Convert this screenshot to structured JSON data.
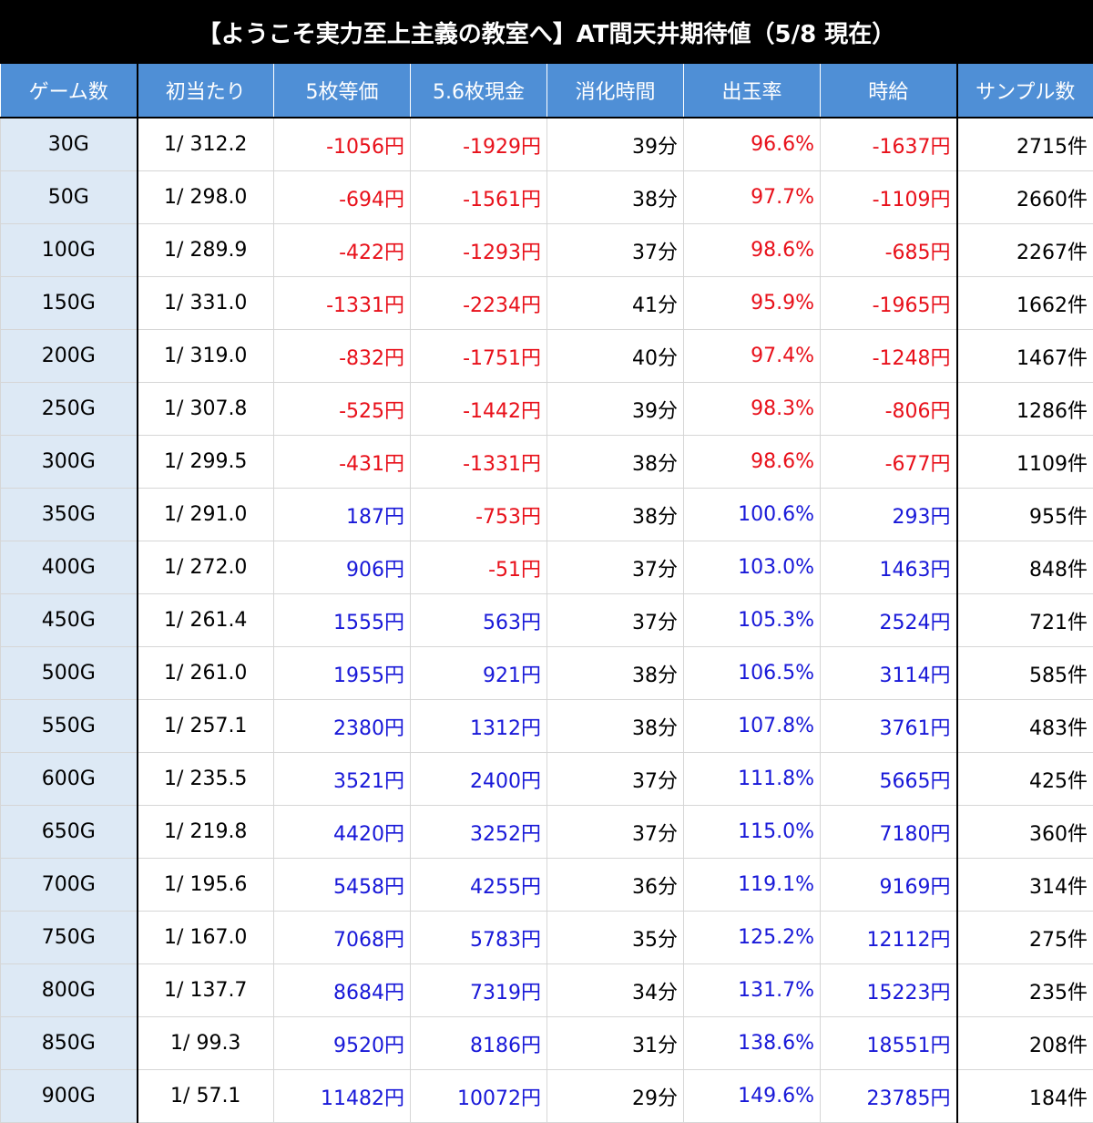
{
  "title": "【ようこそ実力至上主義の教室へ】AT間天井期待値（5/8 現在）",
  "colors": {
    "header_bg": "#4f8fd6",
    "negative": "#e8101a",
    "positive": "#1818d8",
    "first_col_bg": "#dde9f5"
  },
  "headers": [
    "ゲーム数",
    "初当たり",
    "5枚等価",
    "5.6枚現金",
    "消化時間",
    "出玉率",
    "時給",
    "サンプル数"
  ],
  "rows": [
    {
      "game": "30G",
      "hit": "1/ 312.2",
      "eq5": "-1056円",
      "cash56": "-1929円",
      "time": "39分",
      "payout": "96.6%",
      "hourly": "-1637円",
      "samples": "2715件",
      "sign": "neg"
    },
    {
      "game": "50G",
      "hit": "1/ 298.0",
      "eq5": "-694円",
      "cash56": "-1561円",
      "time": "38分",
      "payout": "97.7%",
      "hourly": "-1109円",
      "samples": "2660件",
      "sign": "neg"
    },
    {
      "game": "100G",
      "hit": "1/ 289.9",
      "eq5": "-422円",
      "cash56": "-1293円",
      "time": "37分",
      "payout": "98.6%",
      "hourly": "-685円",
      "samples": "2267件",
      "sign": "neg"
    },
    {
      "game": "150G",
      "hit": "1/ 331.0",
      "eq5": "-1331円",
      "cash56": "-2234円",
      "time": "41分",
      "payout": "95.9%",
      "hourly": "-1965円",
      "samples": "1662件",
      "sign": "neg"
    },
    {
      "game": "200G",
      "hit": "1/ 319.0",
      "eq5": "-832円",
      "cash56": "-1751円",
      "time": "40分",
      "payout": "97.4%",
      "hourly": "-1248円",
      "samples": "1467件",
      "sign": "neg"
    },
    {
      "game": "250G",
      "hit": "1/ 307.8",
      "eq5": "-525円",
      "cash56": "-1442円",
      "time": "39分",
      "payout": "98.3%",
      "hourly": "-806円",
      "samples": "1286件",
      "sign": "neg"
    },
    {
      "game": "300G",
      "hit": "1/ 299.5",
      "eq5": "-431円",
      "cash56": "-1331円",
      "time": "38分",
      "payout": "98.6%",
      "hourly": "-677円",
      "samples": "1109件",
      "sign": "neg"
    },
    {
      "game": "350G",
      "hit": "1/ 291.0",
      "eq5": "187円",
      "cash56": "-753円",
      "time": "38分",
      "payout": "100.6%",
      "hourly": "293円",
      "samples": "955件",
      "sign": "pos"
    },
    {
      "game": "400G",
      "hit": "1/ 272.0",
      "eq5": "906円",
      "cash56": "-51円",
      "time": "37分",
      "payout": "103.0%",
      "hourly": "1463円",
      "samples": "848件",
      "sign": "pos"
    },
    {
      "game": "450G",
      "hit": "1/ 261.4",
      "eq5": "1555円",
      "cash56": "563円",
      "time": "37分",
      "payout": "105.3%",
      "hourly": "2524円",
      "samples": "721件",
      "sign": "pos"
    },
    {
      "game": "500G",
      "hit": "1/ 261.0",
      "eq5": "1955円",
      "cash56": "921円",
      "time": "38分",
      "payout": "106.5%",
      "hourly": "3114円",
      "samples": "585件",
      "sign": "pos"
    },
    {
      "game": "550G",
      "hit": "1/ 257.1",
      "eq5": "2380円",
      "cash56": "1312円",
      "time": "38分",
      "payout": "107.8%",
      "hourly": "3761円",
      "samples": "483件",
      "sign": "pos"
    },
    {
      "game": "600G",
      "hit": "1/ 235.5",
      "eq5": "3521円",
      "cash56": "2400円",
      "time": "37分",
      "payout": "111.8%",
      "hourly": "5665円",
      "samples": "425件",
      "sign": "pos"
    },
    {
      "game": "650G",
      "hit": "1/ 219.8",
      "eq5": "4420円",
      "cash56": "3252円",
      "time": "37分",
      "payout": "115.0%",
      "hourly": "7180円",
      "samples": "360件",
      "sign": "pos"
    },
    {
      "game": "700G",
      "hit": "1/ 195.6",
      "eq5": "5458円",
      "cash56": "4255円",
      "time": "36分",
      "payout": "119.1%",
      "hourly": "9169円",
      "samples": "314件",
      "sign": "pos"
    },
    {
      "game": "750G",
      "hit": "1/ 167.0",
      "eq5": "7068円",
      "cash56": "5783円",
      "time": "35分",
      "payout": "125.2%",
      "hourly": "12112円",
      "samples": "275件",
      "sign": "pos"
    },
    {
      "game": "800G",
      "hit": "1/ 137.7",
      "eq5": "8684円",
      "cash56": "7319円",
      "time": "34分",
      "payout": "131.7%",
      "hourly": "15223円",
      "samples": "235件",
      "sign": "pos"
    },
    {
      "game": "850G",
      "hit": "1/ 99.3",
      "eq5": "9520円",
      "cash56": "8186円",
      "time": "31分",
      "payout": "138.6%",
      "hourly": "18551円",
      "samples": "208件",
      "sign": "pos"
    },
    {
      "game": "900G",
      "hit": "1/ 57.1",
      "eq5": "11482円",
      "cash56": "10072円",
      "time": "29分",
      "payout": "149.6%",
      "hourly": "23785円",
      "samples": "184件",
      "sign": "pos"
    }
  ]
}
